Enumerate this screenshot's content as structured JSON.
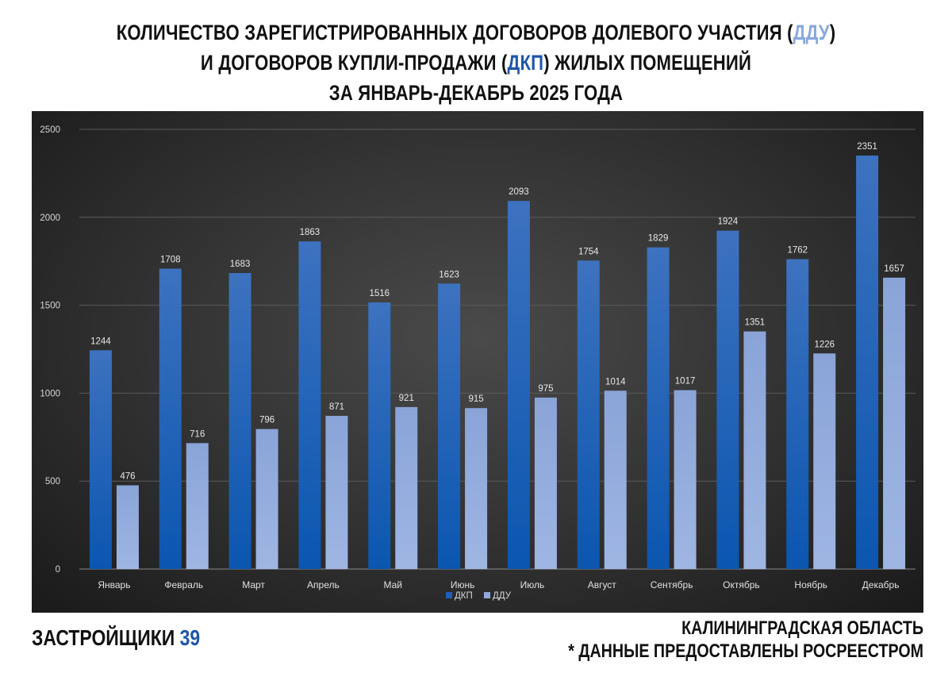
{
  "title": {
    "line1_a": "КОЛИЧЕСТВО ЗАРЕГИСТРИРОВАННЫХ ДОГОВОРОВ ДОЛЕВОГО УЧАСТИЯ (",
    "line1_hl": "ДДУ",
    "line1_b": ")",
    "line2_a": "И ДОГОВОРОВ КУПЛИ-ПРОДАЖИ (",
    "line2_hl": "ДКП",
    "line2_b": ") ЖИЛЫХ ПОМЕЩЕНИЙ",
    "line3": "ЗА ЯНВАРЬ-ДЕКАБРЬ 2025 ГОДА"
  },
  "chart_data": {
    "type": "bar",
    "categories": [
      "Январь",
      "Февраль",
      "Март",
      "Апрель",
      "Май",
      "Июнь",
      "Июль",
      "Август",
      "Сентябрь",
      "Октябрь",
      "Ноябрь",
      "Декабрь"
    ],
    "series": [
      {
        "name": "ДКП",
        "color": "#1e5fb8",
        "values": [
          1244,
          1708,
          1683,
          1863,
          1516,
          1623,
          2093,
          1754,
          1829,
          1924,
          1762,
          2351
        ]
      },
      {
        "name": "ДДУ",
        "color": "#8fa9dc",
        "values": [
          476,
          716,
          796,
          871,
          921,
          915,
          975,
          1014,
          1017,
          1351,
          1226,
          1657
        ]
      }
    ],
    "ylim": [
      0,
      2500
    ],
    "yticks": [
      0,
      500,
      1000,
      1500,
      2000,
      2500
    ],
    "grid": true,
    "legend": "bottom-center",
    "data_labels": true
  },
  "footer": {
    "brand": "ЗАСТРОЙЩИКИ",
    "brand_num": "39",
    "region": "КАЛИНИНГРАДСКАЯ ОБЛАСТЬ",
    "source": "* ДАННЫЕ ПРЕДОСТАВЛЕНЫ РОСРЕЕСТРОМ"
  }
}
